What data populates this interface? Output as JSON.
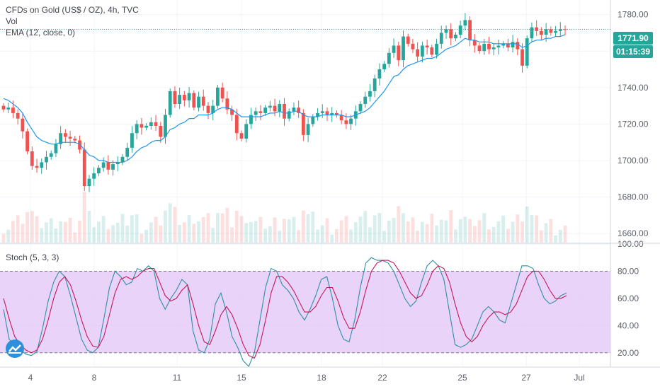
{
  "legend": {
    "title": "CFDs on Gold (US$ / OZ), 4h, TVC",
    "vol": "Vol",
    "ema": "EMA (12, close, 0)",
    "stoch": "Stoch (5, 3, 3)"
  },
  "badges": {
    "last_price": "1771.90",
    "countdown": "01:15:39",
    "last_price_value": 1771.9,
    "price_color": "#26a69a"
  },
  "colors": {
    "up": "#26a69a",
    "down": "#ef5350",
    "ema": "#2196f3",
    "stoch_k": "#2e8fa3",
    "stoch_d": "#c2185b",
    "stoch_band": "#e1c4f5"
  },
  "chart_data": [
    {
      "type": "candlestick",
      "title": "CFDs on Gold (US$ / OZ), 4h, TVC",
      "ylim": [
        1655,
        1788
      ],
      "y_ticks": [
        "1780.00",
        "1760.00",
        "1740.00",
        "1720.00",
        "1700.00",
        "1680.00",
        "1660.00"
      ],
      "x_ticks": [
        "4",
        "8",
        "11",
        "15",
        "18",
        "22",
        "25",
        "27",
        "Jul"
      ],
      "grid": true,
      "close": [
        1728,
        1729,
        1726,
        1723,
        1716,
        1705,
        1697,
        1696,
        1699,
        1702,
        1704,
        1709,
        1715,
        1713,
        1712,
        1711,
        1706,
        1686,
        1690,
        1693,
        1696,
        1699,
        1695,
        1698,
        1699,
        1702,
        1707,
        1715,
        1720,
        1718,
        1719,
        1721,
        1719,
        1713,
        1725,
        1738,
        1731,
        1736,
        1733,
        1737,
        1729,
        1735,
        1730,
        1726,
        1730,
        1740,
        1734,
        1728,
        1725,
        1715,
        1712,
        1720,
        1725,
        1727,
        1726,
        1729,
        1730,
        1727,
        1731,
        1723,
        1727,
        1729,
        1726,
        1714,
        1720,
        1724,
        1726,
        1727,
        1725,
        1726,
        1725,
        1722,
        1720,
        1723,
        1727,
        1731,
        1735,
        1738,
        1745,
        1750,
        1753,
        1759,
        1763,
        1755,
        1768,
        1764,
        1761,
        1757,
        1763,
        1762,
        1758,
        1764,
        1770,
        1772,
        1767,
        1769,
        1774,
        1777,
        1766,
        1763,
        1760,
        1764,
        1761,
        1762,
        1763,
        1764,
        1762,
        1765,
        1761,
        1752,
        1767,
        1773,
        1771,
        1769,
        1772,
        1770,
        1771,
        1772,
        1771.9
      ],
      "ema": [
        1734,
        1733,
        1731,
        1729,
        1726,
        1721,
        1717,
        1713,
        1711,
        1710,
        1709,
        1709,
        1710,
        1710,
        1710,
        1710,
        1709,
        1706,
        1703,
        1702,
        1700,
        1700,
        1699,
        1699,
        1699,
        1699,
        1700,
        1702,
        1705,
        1707,
        1708,
        1710,
        1711,
        1711,
        1713,
        1717,
        1718,
        1720,
        1721,
        1723,
        1723,
        1725,
        1725,
        1725,
        1726,
        1728,
        1729,
        1729,
        1728,
        1726,
        1724,
        1724,
        1724,
        1724,
        1724,
        1725,
        1726,
        1726,
        1727,
        1726,
        1726,
        1727,
        1727,
        1725,
        1724,
        1724,
        1724,
        1725,
        1725,
        1725,
        1725,
        1725,
        1724,
        1724,
        1725,
        1726,
        1727,
        1729,
        1732,
        1735,
        1738,
        1742,
        1746,
        1747,
        1750,
        1752,
        1753,
        1754,
        1755,
        1756,
        1756,
        1757,
        1759,
        1761,
        1762,
        1763,
        1765,
        1767,
        1766,
        1766,
        1765,
        1765,
        1765,
        1764,
        1764,
        1764,
        1764,
        1764,
        1764,
        1762,
        1763,
        1765,
        1766,
        1766,
        1767,
        1767,
        1768,
        1768,
        1769
      ],
      "volume_series_name": "Vol"
    },
    {
      "type": "line",
      "title": "Stoch (5, 3, 3)",
      "ylim": [
        10,
        100
      ],
      "y_ticks": [
        "100.00",
        "80.00",
        "60.00",
        "40.00",
        "20.00"
      ],
      "band": [
        20,
        80
      ],
      "series": [
        {
          "name": "",
          "values": [
            52,
            30,
            25,
            22,
            19,
            18,
            21,
            38,
            58,
            72,
            80,
            76,
            62,
            46,
            30,
            22,
            20,
            24,
            45,
            68,
            80,
            76,
            70,
            72,
            82,
            80,
            84,
            80,
            60,
            52,
            60,
            66,
            74,
            70,
            36,
            22,
            20,
            30,
            56,
            64,
            50,
            32,
            24,
            14,
            10,
            20,
            44,
            68,
            82,
            80,
            70,
            66,
            60,
            50,
            44,
            52,
            62,
            74,
            76,
            60,
            40,
            30,
            28,
            44,
            68,
            86,
            90,
            88,
            88,
            86,
            80,
            70,
            60,
            54,
            58,
            72,
            84,
            88,
            84,
            74,
            50,
            26,
            24,
            26,
            30,
            40,
            50,
            54,
            50,
            44,
            42,
            56,
            70,
            84,
            84,
            82,
            70,
            60,
            56,
            58,
            62,
            64
          ]
        },
        {
          "name": "",
          "values": [
            60,
            45,
            32,
            26,
            22,
            20,
            22,
            30,
            44,
            60,
            72,
            76,
            70,
            58,
            44,
            32,
            25,
            24,
            32,
            48,
            64,
            74,
            76,
            74,
            76,
            80,
            82,
            82,
            72,
            62,
            58,
            60,
            66,
            70,
            56,
            40,
            28,
            26,
            36,
            48,
            54,
            48,
            38,
            26,
            18,
            16,
            26,
            44,
            64,
            76,
            76,
            72,
            66,
            58,
            50,
            50,
            54,
            62,
            68,
            68,
            58,
            46,
            38,
            38,
            50,
            66,
            80,
            86,
            88,
            88,
            86,
            80,
            72,
            64,
            60,
            62,
            70,
            80,
            84,
            82,
            72,
            56,
            42,
            32,
            28,
            32,
            40,
            46,
            50,
            50,
            48,
            50,
            56,
            66,
            76,
            80,
            80,
            74,
            66,
            60,
            60,
            62
          ]
        }
      ]
    }
  ]
}
